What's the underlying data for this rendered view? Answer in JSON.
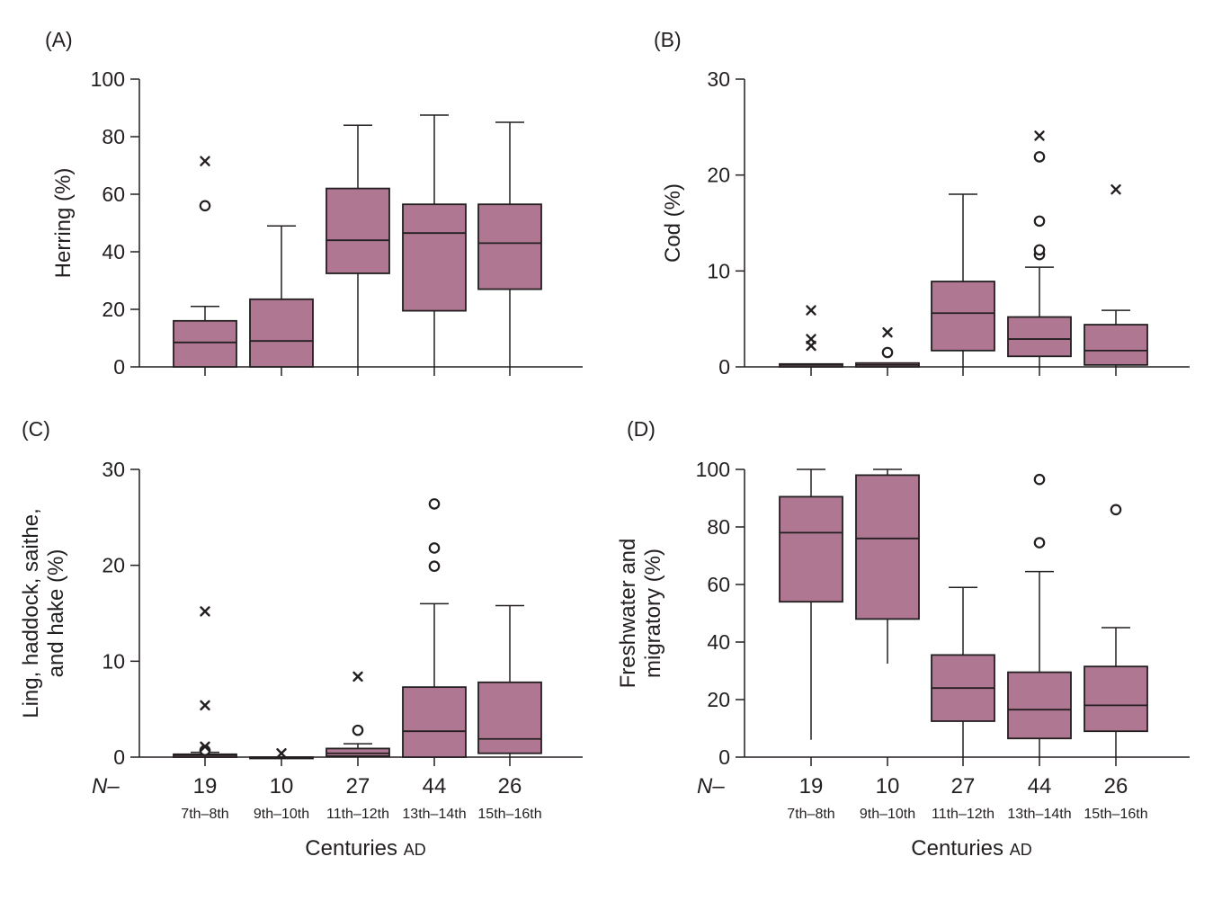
{
  "colors": {
    "box_fill": "#b07793",
    "stroke": "#231f20"
  },
  "n_prefix": "N–",
  "x_title": {
    "main": "Centuries",
    "suffix": "AD"
  },
  "chart_data": [
    {
      "type": "boxplot",
      "panel_label": "(A)",
      "ylabel_lines": [
        "Herring (%)"
      ],
      "ylim": [
        0,
        100
      ],
      "yticks": [
        0,
        20,
        40,
        60,
        80,
        100
      ],
      "show_x_labels": false,
      "categories": [
        "7th–8th",
        "9th–10th",
        "11th–12th",
        "13th–14th",
        "15th–16th"
      ],
      "n": [
        "19",
        "10",
        "27",
        "44",
        "26"
      ],
      "boxes": [
        {
          "min": 0,
          "q1": 0,
          "median": 8.5,
          "q3": 16,
          "max": 21,
          "outliers_circle": [
            56
          ],
          "outliers_star": [
            71.5
          ]
        },
        {
          "min": 0,
          "q1": 0,
          "median": 9,
          "q3": 23.5,
          "max": 49,
          "outliers_circle": [],
          "outliers_star": []
        },
        {
          "min": 0,
          "q1": 32.5,
          "median": 44,
          "q3": 62,
          "max": 84,
          "outliers_circle": [],
          "outliers_star": []
        },
        {
          "min": 0,
          "q1": 19.5,
          "median": 46.5,
          "q3": 56.5,
          "max": 87.5,
          "outliers_circle": [],
          "outliers_star": []
        },
        {
          "min": 0,
          "q1": 27,
          "median": 43,
          "q3": 56.5,
          "max": 85,
          "outliers_circle": [],
          "outliers_star": []
        }
      ]
    },
    {
      "type": "boxplot",
      "panel_label": "(B)",
      "ylabel_lines": [
        "Cod (%)"
      ],
      "ylim": [
        0,
        30
      ],
      "yticks": [
        0,
        10,
        20,
        30
      ],
      "show_x_labels": false,
      "categories": [
        "7th–8th",
        "9th–10th",
        "11th–12th",
        "13th–14th",
        "15th–16th"
      ],
      "n": [
        "19",
        "10",
        "27",
        "44",
        "26"
      ],
      "boxes": [
        {
          "min": 0,
          "q1": 0,
          "median": 0.2,
          "q3": 0.3,
          "max": 0.3,
          "outliers_circle": [],
          "outliers_star": [
            2.2,
            2.9,
            5.9
          ]
        },
        {
          "min": 0,
          "q1": 0,
          "median": 0.2,
          "q3": 0.4,
          "max": 0.4,
          "outliers_circle": [
            1.5
          ],
          "outliers_star": [
            3.6
          ]
        },
        {
          "min": 0,
          "q1": 1.7,
          "median": 5.6,
          "q3": 8.9,
          "max": 18,
          "outliers_circle": [],
          "outliers_star": []
        },
        {
          "min": 0,
          "q1": 1.1,
          "median": 2.9,
          "q3": 5.2,
          "max": 10.4,
          "outliers_circle": [
            11.7,
            12.2,
            15.2,
            21.9
          ],
          "outliers_star": [
            24.1
          ]
        },
        {
          "min": 0,
          "q1": 0.2,
          "median": 1.7,
          "q3": 4.4,
          "max": 5.9,
          "outliers_circle": [],
          "outliers_star": [
            18.5
          ]
        }
      ]
    },
    {
      "type": "boxplot",
      "panel_label": "(C)",
      "ylabel_lines": [
        "Ling, haddock, saithe,",
        "and hake (%)"
      ],
      "ylim": [
        0,
        30
      ],
      "yticks": [
        0,
        10,
        20,
        30
      ],
      "show_x_labels": true,
      "categories": [
        "7th–8th",
        "9th–10th",
        "11th–12th",
        "13th–14th",
        "15th–16th"
      ],
      "n": [
        "19",
        "10",
        "27",
        "44",
        "26"
      ],
      "boxes": [
        {
          "min": 0,
          "q1": 0,
          "median": 0.2,
          "q3": 0.3,
          "max": 0.5,
          "outliers_circle": [
            0.7
          ],
          "outliers_star": [
            1.1,
            5.4,
            15.2
          ]
        },
        {
          "min": 0,
          "q1": 0,
          "median": 0,
          "q3": 0,
          "max": 0,
          "outliers_circle": [],
          "outliers_star": [
            0.4
          ]
        },
        {
          "min": 0,
          "q1": 0.1,
          "median": 0.4,
          "q3": 0.9,
          "max": 1.4,
          "outliers_circle": [
            2.8
          ],
          "outliers_star": [
            8.4
          ]
        },
        {
          "min": 0,
          "q1": 0,
          "median": 2.7,
          "q3": 7.3,
          "max": 16,
          "outliers_circle": [
            19.9,
            21.8,
            26.4
          ],
          "outliers_star": []
        },
        {
          "min": 0,
          "q1": 0.4,
          "median": 1.9,
          "q3": 7.8,
          "max": 15.8,
          "outliers_circle": [],
          "outliers_star": []
        }
      ]
    },
    {
      "type": "boxplot",
      "panel_label": "(D)",
      "ylabel_lines": [
        "Freshwater and",
        "migratory (%)"
      ],
      "ylim": [
        0,
        100
      ],
      "yticks": [
        0,
        20,
        40,
        60,
        80,
        100
      ],
      "show_x_labels": true,
      "categories": [
        "7th–8th",
        "9th–10th",
        "11th–12th",
        "13th–14th",
        "15th–16th"
      ],
      "n": [
        "19",
        "10",
        "27",
        "44",
        "26"
      ],
      "boxes": [
        {
          "min": 6,
          "q1": 54,
          "median": 78,
          "q3": 90.5,
          "max": 100,
          "outliers_circle": [],
          "outliers_star": []
        },
        {
          "min": 32.5,
          "q1": 48,
          "median": 76,
          "q3": 98,
          "max": 100,
          "outliers_circle": [],
          "outliers_star": []
        },
        {
          "min": 0,
          "q1": 12.5,
          "median": 24,
          "q3": 35.5,
          "max": 59,
          "outliers_circle": [],
          "outliers_star": []
        },
        {
          "min": 0,
          "q1": 6.5,
          "median": 16.5,
          "q3": 29.5,
          "max": 64.5,
          "outliers_circle": [
            74.5,
            96.5
          ],
          "outliers_star": []
        },
        {
          "min": 0,
          "q1": 9,
          "median": 18,
          "q3": 31.5,
          "max": 45,
          "outliers_circle": [
            86
          ],
          "outliers_star": []
        }
      ]
    }
  ]
}
